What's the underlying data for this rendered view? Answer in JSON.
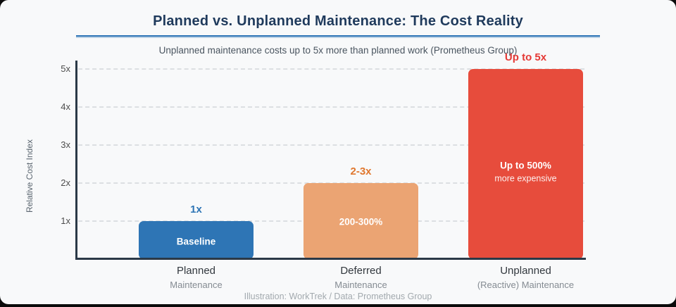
{
  "chart_data": {
    "type": "bar",
    "title": "Planned vs. Unplanned Maintenance: The Cost Reality",
    "subtitle": "Unplanned maintenance costs up to 5x more than planned work (Prometheus Group)",
    "ylabel": "Relative Cost Index",
    "xlabel": "",
    "ylim": [
      0,
      5
    ],
    "ytick_values": [
      1,
      2,
      3,
      4,
      5
    ],
    "ytick_labels": [
      "1x",
      "2x",
      "3x",
      "4x",
      "5x"
    ],
    "grid": "horizontal-dashed",
    "legend_position": "none",
    "categories": [
      [
        "Planned",
        "Maintenance"
      ],
      [
        "Deferred",
        "Maintenance"
      ],
      [
        "Unplanned",
        "(Reactive) Maintenance"
      ]
    ],
    "category_slugs": [
      "planned",
      "deferred",
      "unplanned"
    ],
    "values": [
      1,
      2,
      5
    ],
    "value_labels": [
      "1x",
      "2-3x",
      "Up to 5x"
    ],
    "value_label_colors": [
      "#2e75b5",
      "#e0772e",
      "#e53935"
    ],
    "bar_colors": [
      "#2e75b5",
      "#eba473",
      "#e74c3c"
    ],
    "bar_inner_labels": [
      [
        "Baseline"
      ],
      [
        "200-300%"
      ],
      [
        "Up to 500%",
        "more expensive"
      ]
    ],
    "footer_credit": "Illustration: WorkTrek / Data: Prometheus Group",
    "colors": {
      "card_background": "#f8f9fa",
      "outer_background": "#0b0b0b",
      "title": "#1f3a5c",
      "title_rule": "#2e75b6",
      "axis": "#2b3947",
      "gridline": "#dcdfe2",
      "category_text": "#32383e",
      "category_subtext": "#848b92",
      "footer_text": "#a2a9ae"
    }
  }
}
